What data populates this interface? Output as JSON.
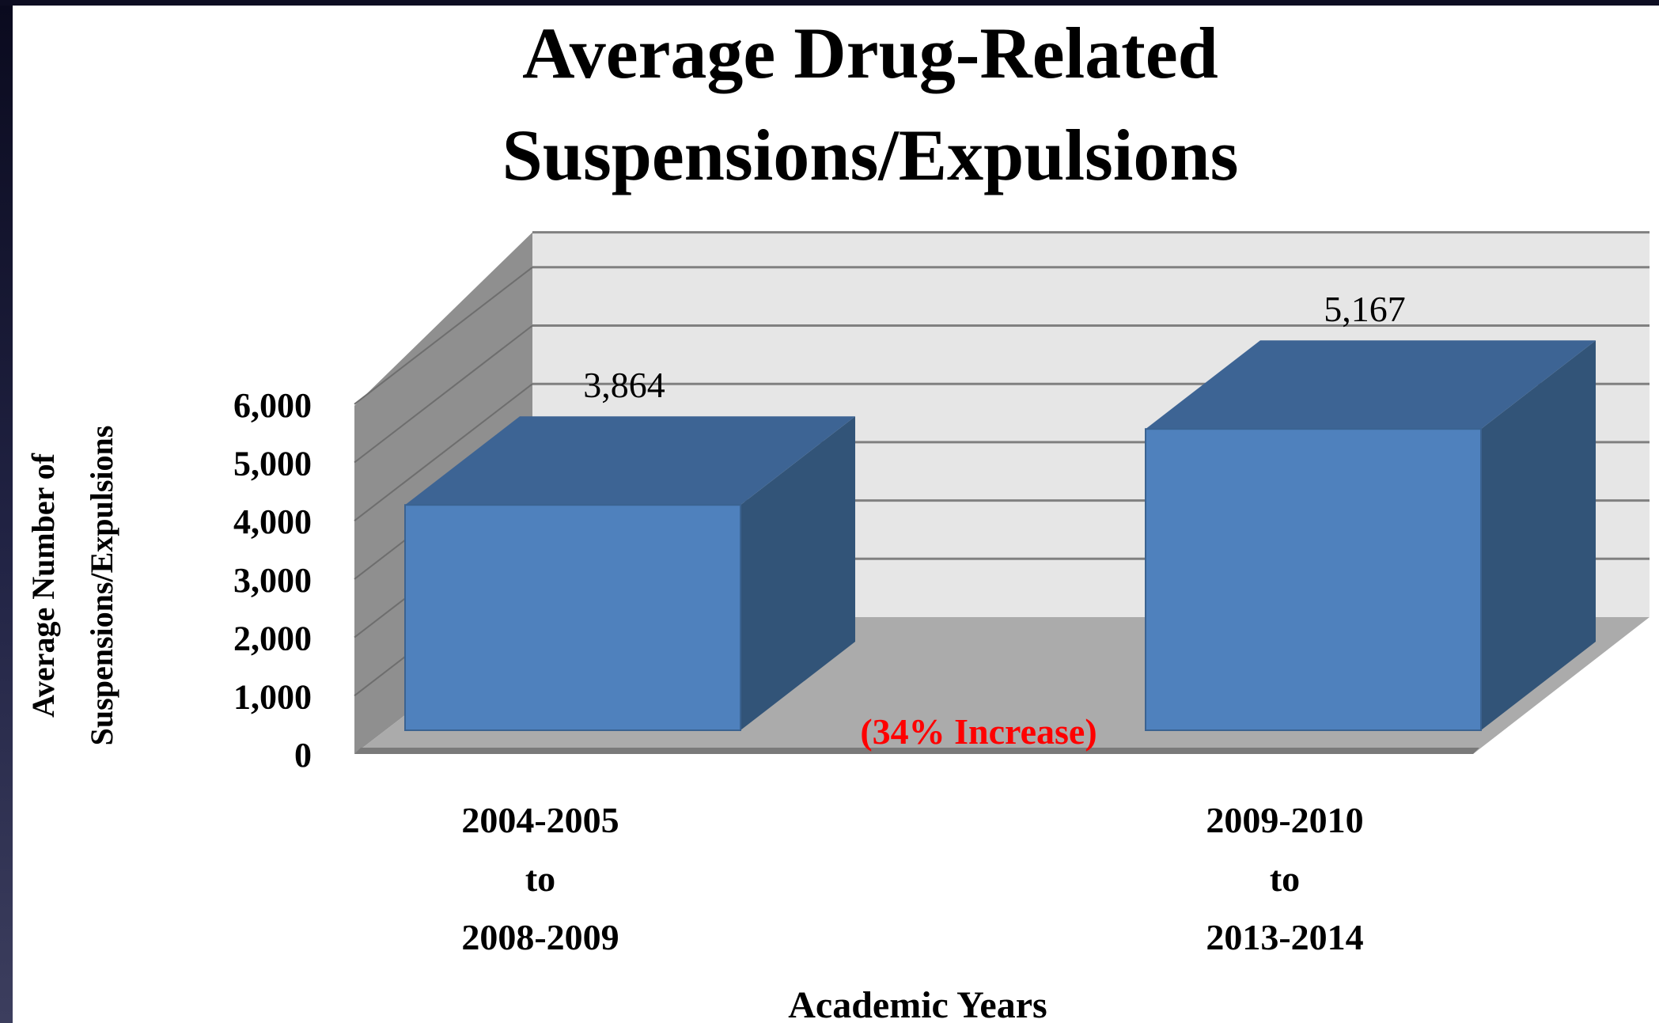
{
  "chart_data": {
    "type": "bar",
    "title_lines": [
      "Average Drug-Related",
      "Suspensions/Expulsions"
    ],
    "categories": [
      [
        "2004-2005",
        "to",
        "2008-2009"
      ],
      [
        "2009-2010",
        "to",
        "2013-2014"
      ]
    ],
    "values": [
      3864,
      5167
    ],
    "value_labels": [
      "3,864",
      "5,167"
    ],
    "annotation": "(34% Increase)",
    "xlabel": "Academic Years",
    "ylabel_lines": [
      "Average Number of",
      "Suspensions/Expulsions"
    ],
    "ylim": [
      0,
      6000
    ],
    "yticks": [
      0,
      1000,
      2000,
      3000,
      4000,
      5000,
      6000
    ],
    "ytick_labels": [
      "0",
      "1,000",
      "2,000",
      "3,000",
      "4,000",
      "5,000",
      "6,000"
    ],
    "grid": true,
    "style": "3d-column",
    "colors": {
      "bar_front": "#4f81bd",
      "bar_top": "#3d6494",
      "bar_side": "#325478",
      "back_wall": "#e6e6e6",
      "side_wall": "#8f8f8f",
      "floor": "#ababab",
      "annotation": "#ff0000"
    }
  }
}
